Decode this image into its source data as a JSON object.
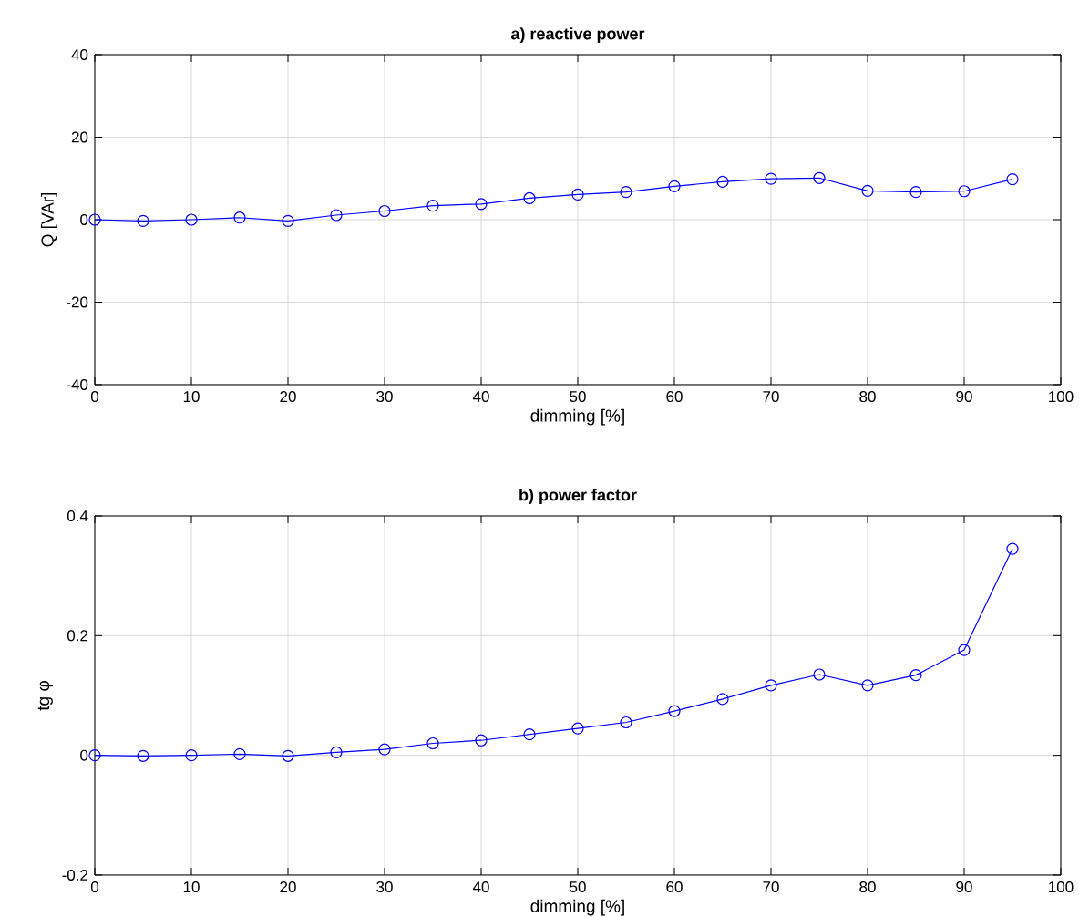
{
  "chart_data": [
    {
      "type": "line",
      "title": "a) reactive power",
      "xlabel": "dimming [%]",
      "ylabel": "Q [VAr]",
      "x": [
        0,
        5,
        10,
        15,
        20,
        25,
        30,
        35,
        40,
        45,
        50,
        55,
        60,
        65,
        70,
        75,
        80,
        85,
        90,
        95
      ],
      "series": [
        {
          "color": "#0000ff",
          "values": [
            0,
            -0.3,
            0,
            0.5,
            -0.3,
            1.1,
            2.1,
            3.4,
            3.8,
            5.2,
            6.1,
            6.7,
            8.1,
            9.2,
            9.9,
            10.1,
            7.0,
            6.7,
            6.9,
            9.8
          ]
        }
      ],
      "xlim": [
        0,
        100
      ],
      "xticks": [
        0,
        10,
        20,
        30,
        40,
        50,
        60,
        70,
        80,
        90,
        100
      ],
      "ylim": [
        -40,
        40
      ],
      "yticks": [
        -40,
        -20,
        0,
        20,
        40
      ],
      "grid": true,
      "marker": "circle",
      "line_style": "solid"
    },
    {
      "type": "line",
      "title": "b) power factor",
      "xlabel": "dimming [%]",
      "ylabel": "tg φ",
      "x": [
        0,
        5,
        10,
        15,
        20,
        25,
        30,
        35,
        40,
        45,
        50,
        55,
        60,
        65,
        70,
        75,
        80,
        85,
        90,
        95
      ],
      "series": [
        {
          "color": "#0000ff",
          "values": [
            0,
            -0.001,
            0,
            0.002,
            -0.001,
            0.005,
            0.01,
            0.02,
            0.025,
            0.035,
            0.045,
            0.055,
            0.074,
            0.094,
            0.117,
            0.135,
            0.117,
            0.134,
            0.176,
            0.345
          ]
        }
      ],
      "xlim": [
        0,
        100
      ],
      "xticks": [
        0,
        10,
        20,
        30,
        40,
        50,
        60,
        70,
        80,
        90,
        100
      ],
      "ylim": [
        -0.2,
        0.4
      ],
      "yticks": [
        -0.2,
        0,
        0.2,
        0.4
      ],
      "grid": true,
      "marker": "circle",
      "line_style": "solid"
    }
  ]
}
